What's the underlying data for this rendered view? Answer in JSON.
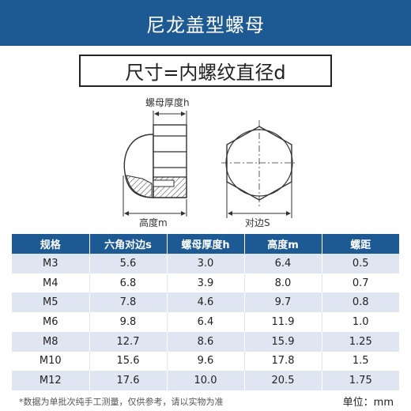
{
  "header": {
    "title": "尼龙盖型螺母"
  },
  "subtitle": "尺寸=内螺纹直径d",
  "diagram": {
    "label_thickness": "螺母厚度h",
    "label_height": "高度m",
    "label_across_flats": "对边S"
  },
  "table": {
    "columns": [
      "规格",
      "六角对边s",
      "螺母厚度h",
      "高度m",
      "螺距"
    ],
    "rows": [
      [
        "M3",
        "5.6",
        "3.0",
        "6.4",
        "0.5"
      ],
      [
        "M4",
        "6.8",
        "3.9",
        "8.0",
        "0.7"
      ],
      [
        "M5",
        "7.8",
        "4.6",
        "9.7",
        "0.8"
      ],
      [
        "M6",
        "9.8",
        "6.4",
        "11.9",
        "1.0"
      ],
      [
        "M8",
        "12.7",
        "8.6",
        "15.9",
        "1.25"
      ],
      [
        "M10",
        "15.6",
        "9.6",
        "17.8",
        "1.5"
      ],
      [
        "M12",
        "17.6",
        "10.0",
        "20.5",
        "1.75"
      ]
    ]
  },
  "footer": {
    "note": "*数据为单批次纯手工测量，仅供参考，请以实物为准",
    "unit": "单位：mm"
  },
  "colors": {
    "primary": "#1d5a94",
    "row_alt": "#dfe6f2"
  }
}
